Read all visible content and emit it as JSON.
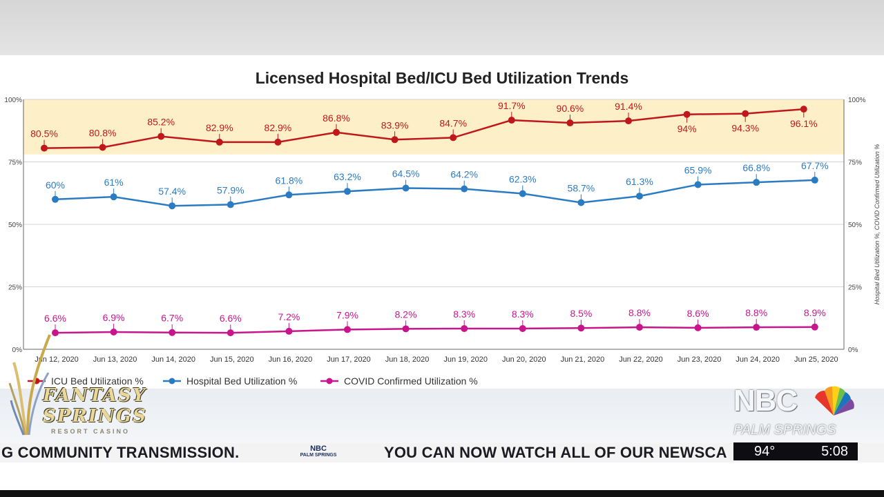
{
  "chart_data": {
    "type": "line",
    "title": "Licensed Hospital Bed/ICU Bed Utilization Trends",
    "categories": [
      "Jun 12, 2020",
      "Jun 13, 2020",
      "Jun 14, 2020",
      "Jun 15, 2020",
      "Jun 16, 2020",
      "Jun 17, 2020",
      "Jun 18, 2020",
      "Jun 19, 2020",
      "Jun 20, 2020",
      "Jun 21, 2020",
      "Jun 22, 2020",
      "Jun 23, 2020",
      "Jun 24, 2020",
      "Jun 25, 2020"
    ],
    "ylim": [
      0,
      100
    ],
    "y_ticks": [
      "0%",
      "25%",
      "50%",
      "75%",
      "100%"
    ],
    "right_axis_label": "Hospital Bed Utilization %, COVID Confirmed Utilization %",
    "highlight_band": [
      78,
      100
    ],
    "series": [
      {
        "name": "ICU Bed Utilization %",
        "color": "#c0171c",
        "values": [
          80.5,
          80.8,
          85.2,
          82.9,
          82.9,
          86.8,
          83.9,
          84.7,
          91.7,
          90.6,
          91.4,
          94,
          94.3,
          96.1
        ],
        "labels": [
          "80.5%",
          "80.8%",
          "85.2%",
          "82.9%",
          "82.9%",
          "86.8%",
          "83.9%",
          "84.7%",
          "91.7%",
          "90.6%",
          "91.4%",
          "94%",
          "94.3%",
          "96.1%"
        ]
      },
      {
        "name": "Hospital Bed Utilization %",
        "color": "#2b7bc3",
        "values": [
          60,
          61,
          57.4,
          57.9,
          61.8,
          63.2,
          64.5,
          64.2,
          62.3,
          58.7,
          61.3,
          65.9,
          66.8,
          67.7
        ],
        "labels": [
          "60%",
          "61%",
          "57.4%",
          "57.9%",
          "61.8%",
          "63.2%",
          "64.5%",
          "64.2%",
          "62.3%",
          "58.7%",
          "61.3%",
          "65.9%",
          "66.8%",
          "67.7%"
        ]
      },
      {
        "name": "COVID Confirmed Utilization %",
        "color": "#c8158c",
        "values": [
          6.6,
          6.9,
          6.7,
          6.6,
          7.2,
          7.9,
          8.2,
          8.3,
          8.3,
          8.5,
          8.8,
          8.6,
          8.8,
          8.9
        ],
        "labels": [
          "6.6%",
          "6.9%",
          "6.7%",
          "6.6%",
          "7.2%",
          "7.9%",
          "8.2%",
          "8.3%",
          "8.3%",
          "8.5%",
          "8.8%",
          "8.6%",
          "8.8%",
          "8.9%"
        ]
      }
    ],
    "legend": {
      "position": "bottom-left",
      "items": [
        "ICU Bed Utilization %",
        "Hospital Bed Utilization %",
        "COVID Confirmed Utilization %"
      ]
    },
    "grid": true
  },
  "broadcast": {
    "ticker_left": "G COMMUNITY TRANSMISSION.",
    "ticker_right": "YOU CAN NOW WATCH ALL OF OUR NEWSCA",
    "ticker_logo_top": "NBC",
    "ticker_logo_bottom": "PALM SPRINGS",
    "temperature": "94°",
    "time": "5:08",
    "station_name": "NBC",
    "station_sub": "PALM SPRINGS",
    "sponsor_line1": "FANTASY",
    "sponsor_line2": "SPRINGS",
    "sponsor_sub": "RESORT CASINO"
  }
}
